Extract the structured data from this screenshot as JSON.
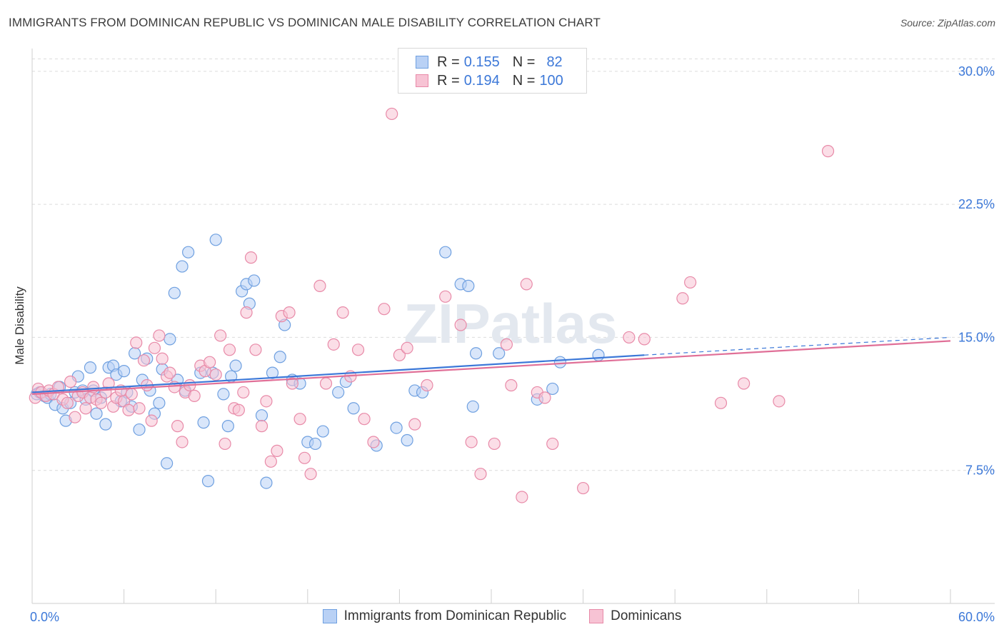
{
  "header": {
    "title": "IMMIGRANTS FROM DOMINICAN REPUBLIC VS DOMINICAN MALE DISABILITY CORRELATION CHART",
    "source": "Source: ZipAtlas.com"
  },
  "legend_top": {
    "rows": [
      {
        "r_label": "R =",
        "r_value": "0.155",
        "n_label": "N =",
        "n_value": "82"
      },
      {
        "r_label": "R =",
        "r_value": "0.194",
        "n_label": "N =",
        "n_value": "100"
      }
    ]
  },
  "chart_data": {
    "type": "scatter",
    "ylabel": "Male Disability",
    "xlim": [
      0,
      60
    ],
    "ylim": [
      0,
      31
    ],
    "x_tick_labels": [
      "0.0%",
      "60.0%"
    ],
    "y_ticks": [
      7.5,
      15.0,
      22.5,
      30.0
    ],
    "y_tick_labels": [
      "7.5%",
      "15.0%",
      "22.5%",
      "30.0%"
    ],
    "grid": "horizontal-dashed",
    "watermark": "ZIPatlas",
    "series": [
      {
        "name": "Immigrants from Dominican Republic",
        "color": "#6fa0e0",
        "fill": "#b9d1f5",
        "line_color": "#3c78d8",
        "trend": {
          "x0": 0,
          "y0": 11.9,
          "x1": 40,
          "y1": 14.0,
          "dashed_to_x": 60,
          "dashed_to_y": 15.0
        },
        "points": [
          [
            0.3,
            11.8
          ],
          [
            0.5,
            11.9
          ],
          [
            0.8,
            11.7
          ],
          [
            1.0,
            11.6
          ],
          [
            1.2,
            11.8
          ],
          [
            1.5,
            11.2
          ],
          [
            1.8,
            12.2
          ],
          [
            2.0,
            11.0
          ],
          [
            2.2,
            10.3
          ],
          [
            2.5,
            11.3
          ],
          [
            2.8,
            11.9
          ],
          [
            3.0,
            12.8
          ],
          [
            3.3,
            12.0
          ],
          [
            3.5,
            11.5
          ],
          [
            3.8,
            13.3
          ],
          [
            4.0,
            12.0
          ],
          [
            4.2,
            10.7
          ],
          [
            4.5,
            11.6
          ],
          [
            4.8,
            10.1
          ],
          [
            5.0,
            13.3
          ],
          [
            5.3,
            13.4
          ],
          [
            5.5,
            12.9
          ],
          [
            5.8,
            11.4
          ],
          [
            6.0,
            13.1
          ],
          [
            6.2,
            11.9
          ],
          [
            6.5,
            11.1
          ],
          [
            6.7,
            14.1
          ],
          [
            7.0,
            9.8
          ],
          [
            7.2,
            12.6
          ],
          [
            7.5,
            13.8
          ],
          [
            7.7,
            12.0
          ],
          [
            8.0,
            10.7
          ],
          [
            8.3,
            11.3
          ],
          [
            8.5,
            13.2
          ],
          [
            8.8,
            7.9
          ],
          [
            9.0,
            14.9
          ],
          [
            9.3,
            17.5
          ],
          [
            9.5,
            12.6
          ],
          [
            9.8,
            19.0
          ],
          [
            10.0,
            12.0
          ],
          [
            10.2,
            19.8
          ],
          [
            11.0,
            13.0
          ],
          [
            11.2,
            10.2
          ],
          [
            11.5,
            6.9
          ],
          [
            11.8,
            13.0
          ],
          [
            12.0,
            20.5
          ],
          [
            12.5,
            11.8
          ],
          [
            12.8,
            10.0
          ],
          [
            13.0,
            12.8
          ],
          [
            13.3,
            13.4
          ],
          [
            13.7,
            17.6
          ],
          [
            14.0,
            18.0
          ],
          [
            14.2,
            16.9
          ],
          [
            14.5,
            18.2
          ],
          [
            15.0,
            10.6
          ],
          [
            15.3,
            6.8
          ],
          [
            15.7,
            13.0
          ],
          [
            16.2,
            13.9
          ],
          [
            16.5,
            15.7
          ],
          [
            17.0,
            12.6
          ],
          [
            17.5,
            12.4
          ],
          [
            18.0,
            9.1
          ],
          [
            18.5,
            9.0
          ],
          [
            19.0,
            9.7
          ],
          [
            20.0,
            11.9
          ],
          [
            20.5,
            12.5
          ],
          [
            21.0,
            11.0
          ],
          [
            22.5,
            8.9
          ],
          [
            23.8,
            9.9
          ],
          [
            24.5,
            9.2
          ],
          [
            25.0,
            12.0
          ],
          [
            25.5,
            11.9
          ],
          [
            27.0,
            19.8
          ],
          [
            28.0,
            18.0
          ],
          [
            28.5,
            17.9
          ],
          [
            28.8,
            11.1
          ],
          [
            29.0,
            14.1
          ],
          [
            30.5,
            14.1
          ],
          [
            33.0,
            11.5
          ],
          [
            34.0,
            12.1
          ],
          [
            34.5,
            13.6
          ],
          [
            37.0,
            14.0
          ]
        ]
      },
      {
        "name": "Dominicans",
        "color": "#e88aa8",
        "fill": "#f7c3d4",
        "line_color": "#e06f97",
        "trend": {
          "x0": 0,
          "y0": 11.8,
          "x1": 60,
          "y1": 14.8
        },
        "points": [
          [
            0.2,
            11.6
          ],
          [
            0.4,
            12.1
          ],
          [
            0.6,
            11.9
          ],
          [
            0.9,
            11.7
          ],
          [
            1.1,
            12.0
          ],
          [
            1.4,
            11.8
          ],
          [
            1.7,
            12.2
          ],
          [
            2.0,
            11.5
          ],
          [
            2.3,
            11.3
          ],
          [
            2.5,
            12.5
          ],
          [
            2.8,
            10.5
          ],
          [
            3.0,
            11.7
          ],
          [
            3.3,
            11.9
          ],
          [
            3.5,
            11.0
          ],
          [
            3.8,
            11.6
          ],
          [
            4.0,
            12.2
          ],
          [
            4.2,
            11.5
          ],
          [
            4.5,
            11.3
          ],
          [
            4.8,
            11.9
          ],
          [
            5.0,
            12.4
          ],
          [
            5.3,
            11.1
          ],
          [
            5.5,
            11.6
          ],
          [
            5.8,
            12.0
          ],
          [
            6.0,
            11.4
          ],
          [
            6.3,
            10.9
          ],
          [
            6.5,
            11.8
          ],
          [
            6.8,
            14.7
          ],
          [
            7.0,
            11.0
          ],
          [
            7.3,
            13.7
          ],
          [
            7.5,
            12.3
          ],
          [
            7.8,
            10.3
          ],
          [
            8.0,
            14.4
          ],
          [
            8.3,
            15.1
          ],
          [
            8.5,
            13.8
          ],
          [
            8.8,
            12.8
          ],
          [
            9.0,
            13.0
          ],
          [
            9.3,
            12.2
          ],
          [
            9.5,
            10.0
          ],
          [
            9.8,
            9.1
          ],
          [
            10.0,
            11.9
          ],
          [
            10.3,
            12.3
          ],
          [
            10.6,
            11.7
          ],
          [
            11.0,
            13.4
          ],
          [
            11.3,
            13.1
          ],
          [
            11.6,
            13.6
          ],
          [
            12.0,
            12.9
          ],
          [
            12.3,
            15.1
          ],
          [
            12.6,
            9.0
          ],
          [
            12.9,
            14.3
          ],
          [
            13.2,
            11.0
          ],
          [
            13.5,
            10.9
          ],
          [
            13.8,
            11.9
          ],
          [
            14.0,
            16.4
          ],
          [
            14.3,
            19.5
          ],
          [
            14.6,
            14.3
          ],
          [
            15.0,
            10.0
          ],
          [
            15.3,
            11.4
          ],
          [
            15.6,
            8.0
          ],
          [
            16.0,
            8.6
          ],
          [
            16.3,
            16.2
          ],
          [
            16.8,
            16.4
          ],
          [
            17.0,
            12.4
          ],
          [
            17.5,
            10.4
          ],
          [
            17.8,
            8.2
          ],
          [
            18.2,
            7.3
          ],
          [
            18.8,
            17.9
          ],
          [
            19.2,
            12.4
          ],
          [
            19.7,
            14.6
          ],
          [
            20.3,
            16.4
          ],
          [
            20.8,
            12.8
          ],
          [
            21.3,
            14.3
          ],
          [
            21.7,
            10.4
          ],
          [
            22.3,
            9.1
          ],
          [
            23.0,
            16.6
          ],
          [
            23.5,
            27.6
          ],
          [
            24.0,
            14.0
          ],
          [
            24.5,
            14.4
          ],
          [
            25.0,
            10.1
          ],
          [
            25.8,
            12.3
          ],
          [
            27.0,
            17.3
          ],
          [
            28.0,
            15.7
          ],
          [
            28.7,
            9.1
          ],
          [
            29.3,
            7.3
          ],
          [
            30.2,
            9.0
          ],
          [
            31.0,
            14.6
          ],
          [
            31.3,
            12.3
          ],
          [
            32.0,
            6.0
          ],
          [
            32.3,
            18.0
          ],
          [
            33.0,
            11.9
          ],
          [
            33.5,
            11.6
          ],
          [
            34.0,
            9.0
          ],
          [
            36.0,
            6.5
          ],
          [
            39.0,
            15.0
          ],
          [
            40.0,
            14.9
          ],
          [
            42.5,
            17.2
          ],
          [
            43.0,
            18.1
          ],
          [
            45.0,
            11.3
          ],
          [
            46.5,
            12.4
          ],
          [
            48.8,
            11.4
          ],
          [
            52.0,
            25.5
          ]
        ]
      }
    ]
  },
  "legend_bottom": {
    "items": [
      {
        "label": "Immigrants from Dominican Republic"
      },
      {
        "label": "Dominicans"
      }
    ]
  }
}
